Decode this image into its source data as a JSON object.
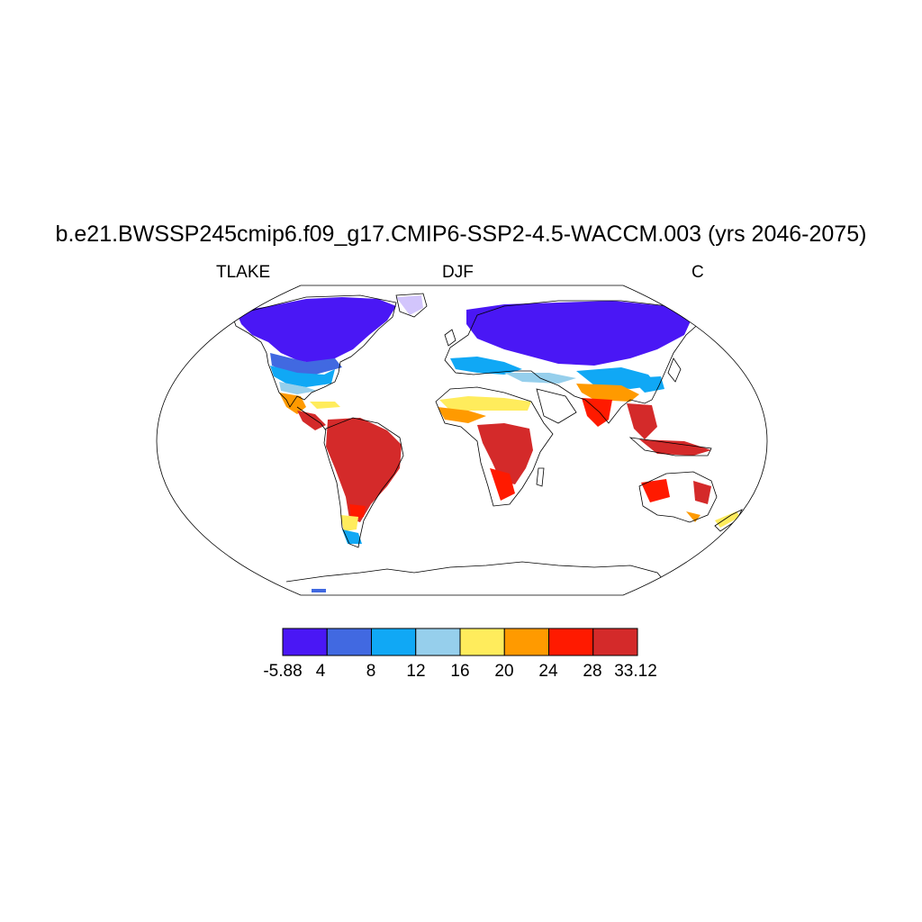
{
  "title": "b.e21.BWSSP245cmip6.f09_g17.CMIP6-SSP2-4.5-WACCM.003 (yrs 2046-2075)",
  "left_label": "TLAKE",
  "center_label": "DJF",
  "right_label": "C",
  "colorbar": {
    "labels": [
      "-5.88",
      "4",
      "8",
      "12",
      "16",
      "20",
      "24",
      "28",
      "33.12"
    ],
    "colors": [
      "#4a17f5",
      "#4169e1",
      "#10a8f5",
      "#96cfec",
      "#ffec5c",
      "#ff9a00",
      "#ff1a00",
      "#d42a2a"
    ]
  }
}
